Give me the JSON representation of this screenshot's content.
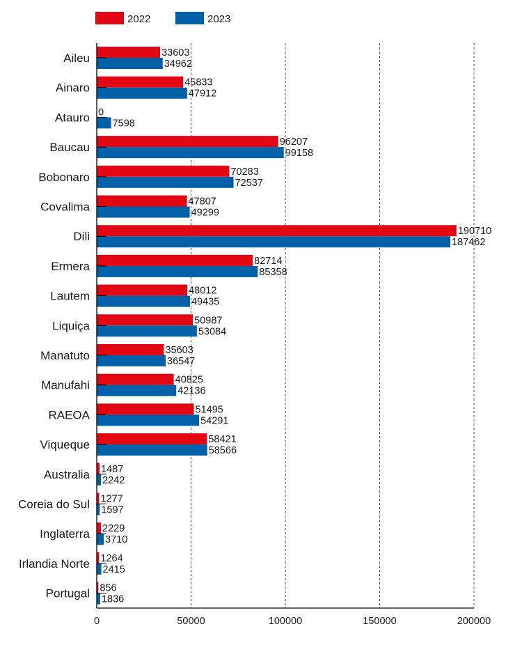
{
  "chart_data": {
    "type": "bar",
    "orientation": "horizontal",
    "title": "",
    "xlabel": "",
    "ylabel": "",
    "xlim": [
      0,
      200000
    ],
    "x_ticks": [
      0,
      50000,
      100000,
      150000,
      200000
    ],
    "x_tick_labels": [
      "0",
      "50000",
      "100000",
      "150000",
      "200000"
    ],
    "grid": "vertical dashed",
    "legend_position": "top-left",
    "categories": [
      "Aileu",
      "Ainaro",
      "Atauro",
      "Baucau",
      "Bobonaro",
      "Covalima",
      "Dili",
      "Ermera",
      "Lautem",
      "Liquiça",
      "Manatuto",
      "Manufahi",
      "RAEOA",
      "Viqueque",
      "Australia",
      "Coreia do Sul",
      "Inglaterra",
      "Irlandia Norte",
      "Portugal"
    ],
    "series": [
      {
        "name": "2022",
        "color": "#e30613",
        "values": [
          33603,
          45833,
          0,
          96207,
          70283,
          47807,
          190710,
          82714,
          48012,
          50987,
          35603,
          40825,
          51495,
          58421,
          1487,
          1277,
          2229,
          1264,
          856
        ]
      },
      {
        "name": "2023",
        "color": "#0060a8",
        "values": [
          34962,
          47912,
          7598,
          99158,
          72537,
          49299,
          187462,
          85358,
          49435,
          53084,
          36547,
          42136,
          54291,
          58566,
          2242,
          1597,
          3710,
          2415,
          1836
        ]
      }
    ]
  }
}
